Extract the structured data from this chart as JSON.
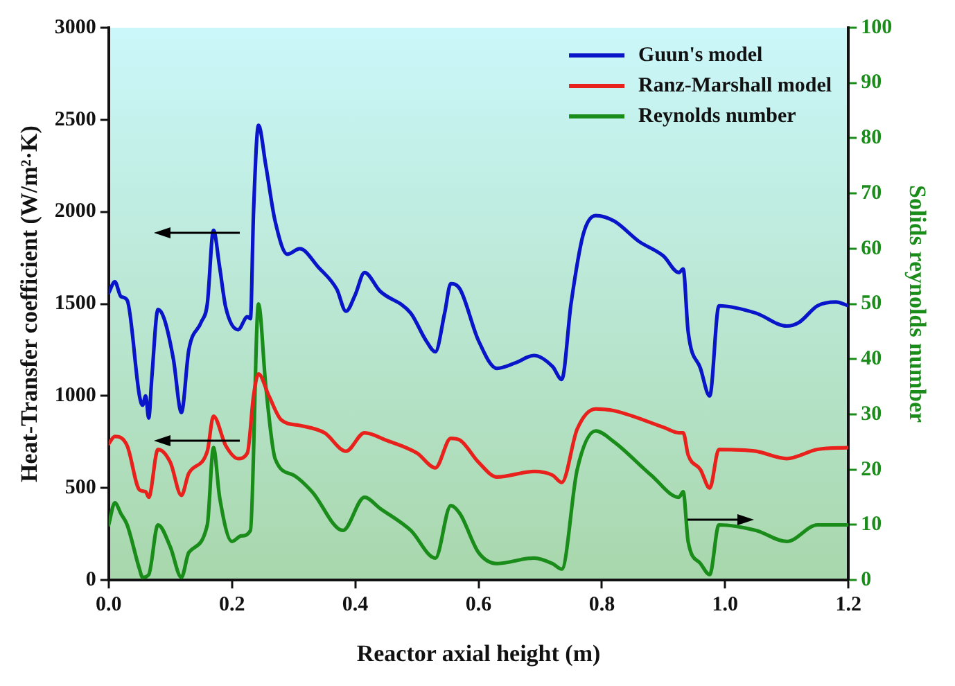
{
  "chart_data": {
    "type": "line",
    "xlabel": "Reactor axial height (m)",
    "ylabel": "Heat-Transfer coefficient (W/m²·K)",
    "y2label": "Solids reynolds number",
    "xlim": [
      0,
      1.2
    ],
    "xticks": [
      {
        "value": 0,
        "label": "0.0"
      },
      0.2,
      0.4,
      0.6,
      0.8,
      {
        "value": 1,
        "label": "1.0"
      },
      1.2
    ],
    "ylim": [
      0,
      3000
    ],
    "yticks": [
      0,
      500,
      1000,
      1500,
      2000,
      2500,
      3000
    ],
    "y2lim": [
      0,
      100
    ],
    "y2ticks": [
      0,
      10,
      20,
      30,
      40,
      50,
      60,
      70,
      80,
      90,
      100
    ],
    "grid": false,
    "legend": "top right",
    "marker": "none",
    "line_style": "solid",
    "series": [
      {
        "name": "Guun's model",
        "color": "#0a14c8",
        "x": [
          0,
          0.01,
          0.02,
          0.03,
          0.05,
          0.055,
          0.06,
          0.065,
          0.07,
          0.08,
          0.09,
          0.105,
          0.118,
          0.13,
          0.15,
          0.16,
          0.17,
          0.18,
          0.19,
          0.21,
          0.225,
          0.23,
          0.235,
          0.243,
          0.255,
          0.27,
          0.29,
          0.31,
          0.34,
          0.37,
          0.385,
          0.4,
          0.415,
          0.44,
          0.49,
          0.515,
          0.53,
          0.545,
          0.555,
          0.57,
          0.6,
          0.63,
          0.66,
          0.69,
          0.72,
          0.735,
          0.75,
          0.77,
          0.79,
          0.82,
          0.86,
          0.9,
          0.925,
          0.932,
          0.94,
          0.96,
          0.975,
          0.99,
          1.05,
          1.1,
          1.12,
          1.15,
          1.18,
          1.2
        ],
        "values": [
          1560,
          1620,
          1540,
          1520,
          1000,
          950,
          1000,
          880,
          1100,
          1470,
          1420,
          1200,
          910,
          1250,
          1400,
          1500,
          1900,
          1700,
          1480,
          1360,
          1430,
          1420,
          2000,
          2470,
          2250,
          1950,
          1770,
          1800,
          1700,
          1580,
          1460,
          1550,
          1670,
          1570,
          1450,
          1300,
          1240,
          1450,
          1610,
          1580,
          1300,
          1150,
          1180,
          1220,
          1160,
          1090,
          1500,
          1880,
          1980,
          1950,
          1840,
          1760,
          1670,
          1690,
          1350,
          1150,
          1000,
          1490,
          1450,
          1380,
          1400,
          1490,
          1510,
          1490
        ]
      },
      {
        "name": "Ranz-Marshall model",
        "color": "#e8211c",
        "x": [
          0,
          0.01,
          0.03,
          0.05,
          0.06,
          0.065,
          0.08,
          0.1,
          0.118,
          0.13,
          0.16,
          0.17,
          0.19,
          0.21,
          0.225,
          0.235,
          0.243,
          0.26,
          0.28,
          0.31,
          0.35,
          0.385,
          0.415,
          0.45,
          0.5,
          0.53,
          0.555,
          0.57,
          0.6,
          0.63,
          0.69,
          0.72,
          0.735,
          0.76,
          0.79,
          0.82,
          0.9,
          0.925,
          0.932,
          0.94,
          0.96,
          0.975,
          0.99,
          1.05,
          1.1,
          1.15,
          1.2
        ],
        "values": [
          740,
          780,
          730,
          490,
          480,
          450,
          710,
          640,
          460,
          580,
          700,
          890,
          730,
          660,
          690,
          1000,
          1120,
          1000,
          870,
          840,
          800,
          700,
          800,
          760,
          690,
          610,
          770,
          760,
          640,
          560,
          590,
          570,
          530,
          820,
          930,
          920,
          830,
          800,
          800,
          680,
          600,
          500,
          710,
          700,
          660,
          710,
          720
        ]
      },
      {
        "name": "Reynolds number",
        "color": "#1a8c1a",
        "axis": "y2",
        "x": [
          0,
          0.01,
          0.02,
          0.03,
          0.05,
          0.055,
          0.065,
          0.08,
          0.1,
          0.118,
          0.13,
          0.16,
          0.17,
          0.18,
          0.2,
          0.215,
          0.23,
          0.243,
          0.255,
          0.27,
          0.3,
          0.33,
          0.38,
          0.415,
          0.44,
          0.49,
          0.53,
          0.555,
          0.57,
          0.6,
          0.63,
          0.69,
          0.72,
          0.735,
          0.76,
          0.79,
          0.82,
          0.88,
          0.925,
          0.932,
          0.94,
          0.96,
          0.975,
          0.99,
          1.05,
          1.1,
          1.15,
          1.2
        ],
        "values": [
          10,
          14,
          12,
          10,
          2,
          0.5,
          1,
          10,
          6,
          0.5,
          5,
          10,
          24,
          15,
          7,
          8,
          9,
          50,
          35,
          22,
          19,
          16,
          9,
          15,
          13,
          9,
          4,
          13.5,
          12,
          5,
          3,
          4,
          3,
          2,
          20,
          27,
          25,
          19,
          15,
          16,
          7,
          3,
          1,
          10,
          9,
          7,
          10,
          10
        ]
      }
    ]
  }
}
